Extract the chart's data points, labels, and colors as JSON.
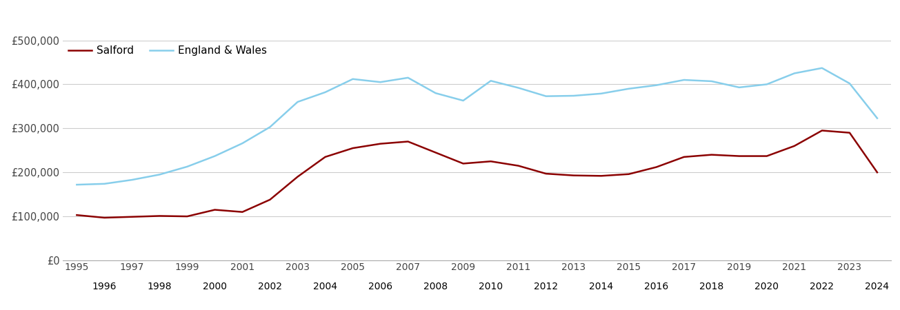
{
  "years": [
    1995,
    1996,
    1997,
    1998,
    1999,
    2000,
    2001,
    2002,
    2003,
    2004,
    2005,
    2006,
    2007,
    2008,
    2009,
    2010,
    2011,
    2012,
    2013,
    2014,
    2015,
    2016,
    2017,
    2018,
    2019,
    2020,
    2021,
    2022,
    2023,
    2024
  ],
  "salford": [
    103000,
    97000,
    99000,
    101000,
    100000,
    115000,
    110000,
    138000,
    190000,
    235000,
    255000,
    265000,
    270000,
    245000,
    220000,
    225000,
    215000,
    197000,
    193000,
    192000,
    196000,
    212000,
    235000,
    240000,
    237000,
    237000,
    260000,
    295000,
    290000,
    200000
  ],
  "england_wales": [
    172000,
    174000,
    183000,
    195000,
    213000,
    237000,
    266000,
    303000,
    360000,
    382000,
    412000,
    405000,
    415000,
    380000,
    363000,
    408000,
    392000,
    373000,
    374000,
    379000,
    390000,
    398000,
    410000,
    407000,
    393000,
    400000,
    425000,
    437000,
    402000,
    323000
  ],
  "salford_color": "#8b0000",
  "ew_color": "#87ceeb",
  "bg_color": "#ffffff",
  "grid_color": "#cccccc",
  "legend_labels": [
    "Salford",
    "England & Wales"
  ],
  "ylim": [
    0,
    500000
  ],
  "yticks": [
    0,
    100000,
    200000,
    300000,
    400000,
    500000
  ],
  "ytick_labels": [
    "£0",
    "£100,000",
    "£200,000",
    "£300,000",
    "£400,000",
    "£500,000"
  ],
  "line_width": 1.8,
  "odd_years": [
    1995,
    1997,
    1999,
    2001,
    2003,
    2005,
    2007,
    2009,
    2011,
    2013,
    2015,
    2017,
    2019,
    2021,
    2023
  ],
  "even_years": [
    1996,
    1998,
    2000,
    2002,
    2004,
    2006,
    2008,
    2010,
    2012,
    2014,
    2016,
    2018,
    2020,
    2022,
    2024
  ]
}
